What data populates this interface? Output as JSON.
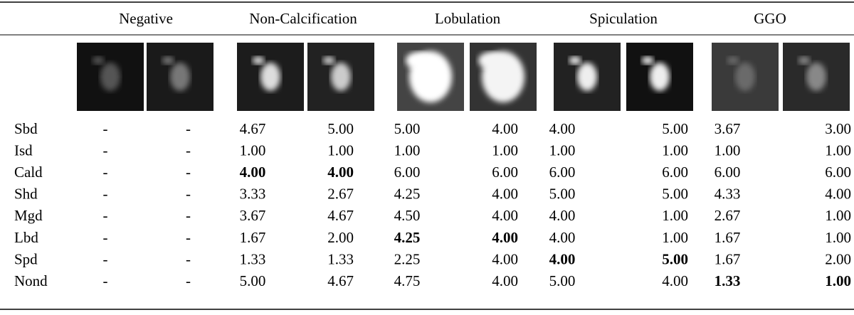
{
  "table": {
    "groups": [
      "Negative",
      "Non-Calcification",
      "Lobulation",
      "Spiculation",
      "GGO"
    ],
    "rows": [
      {
        "label": "Sbd",
        "cells": [
          "-",
          "-",
          "4.67",
          "5.00",
          "5.00",
          "4.00",
          "4.00",
          "5.00",
          "3.67",
          "3.00"
        ],
        "bold": [
          false,
          false,
          false,
          false,
          false,
          false,
          false,
          false,
          false,
          false
        ]
      },
      {
        "label": "Isd",
        "cells": [
          "-",
          "-",
          "1.00",
          "1.00",
          "1.00",
          "1.00",
          "1.00",
          "1.00",
          "1.00",
          "1.00"
        ],
        "bold": [
          false,
          false,
          false,
          false,
          false,
          false,
          false,
          false,
          false,
          false
        ]
      },
      {
        "label": "Cald",
        "cells": [
          "-",
          "-",
          "4.00",
          "4.00",
          "6.00",
          "6.00",
          "6.00",
          "6.00",
          "6.00",
          "6.00"
        ],
        "bold": [
          false,
          false,
          true,
          true,
          false,
          false,
          false,
          false,
          false,
          false
        ]
      },
      {
        "label": "Shd",
        "cells": [
          "-",
          "-",
          "3.33",
          "2.67",
          "4.25",
          "4.00",
          "5.00",
          "5.00",
          "4.33",
          "4.00"
        ],
        "bold": [
          false,
          false,
          false,
          false,
          false,
          false,
          false,
          false,
          false,
          false
        ]
      },
      {
        "label": "Mgd",
        "cells": [
          "-",
          "-",
          "3.67",
          "4.67",
          "4.50",
          "4.00",
          "4.00",
          "1.00",
          "2.67",
          "1.00"
        ],
        "bold": [
          false,
          false,
          false,
          false,
          false,
          false,
          false,
          false,
          false,
          false
        ]
      },
      {
        "label": "Lbd",
        "cells": [
          "-",
          "-",
          "1.67",
          "2.00",
          "4.25",
          "4.00",
          "4.00",
          "1.00",
          "1.67",
          "1.00"
        ],
        "bold": [
          false,
          false,
          false,
          false,
          true,
          true,
          false,
          false,
          false,
          false
        ]
      },
      {
        "label": "Spd",
        "cells": [
          "-",
          "-",
          "1.33",
          "1.33",
          "2.25",
          "4.00",
          "4.00",
          "5.00",
          "1.67",
          "2.00"
        ],
        "bold": [
          false,
          false,
          false,
          false,
          false,
          false,
          true,
          true,
          false,
          false
        ]
      },
      {
        "label": "Nond",
        "cells": [
          "-",
          "-",
          "5.00",
          "4.67",
          "4.75",
          "4.00",
          "5.00",
          "4.00",
          "1.33",
          "1.00"
        ],
        "bold": [
          false,
          false,
          false,
          false,
          false,
          false,
          false,
          false,
          true,
          true
        ]
      }
    ]
  }
}
